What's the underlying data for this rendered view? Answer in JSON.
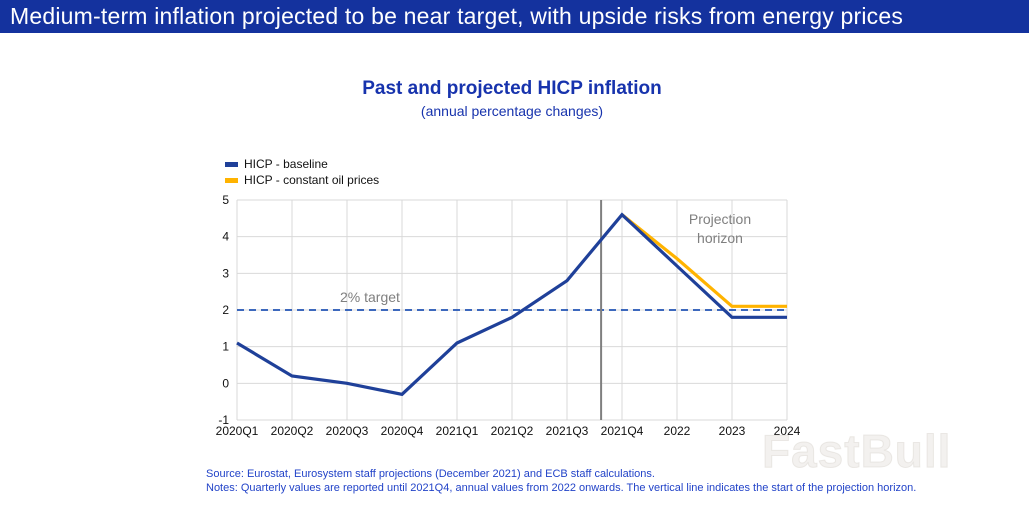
{
  "banner": {
    "title": "Medium-term inflation projected to be near target, with upside risks from energy prices",
    "bg_color": "#14329E",
    "text_color": "#FFFFFF"
  },
  "chart": {
    "title": "Past and projected HICP inflation",
    "subtitle": "(annual percentage changes)",
    "legend": [
      {
        "label": "HICP - baseline",
        "color": "#1F4099"
      },
      {
        "label": "HICP - constant oil prices",
        "color": "#FFB300"
      }
    ],
    "annotations": {
      "target_label": "2% target",
      "projection_line1": "Projection",
      "projection_line2": "horizon"
    }
  },
  "chart_data": {
    "type": "line",
    "title": "Past and projected HICP inflation",
    "subtitle": "(annual percentage changes)",
    "categories": [
      "2020Q1",
      "2020Q2",
      "2020Q3",
      "2020Q4",
      "2021Q1",
      "2021Q2",
      "2021Q3",
      "2021Q4",
      "2022",
      "2023",
      "2024"
    ],
    "series": [
      {
        "name": "HICP - baseline",
        "color": "#1F4099",
        "start_index": 0,
        "values": [
          1.1,
          0.2,
          0.0,
          -0.3,
          1.1,
          1.8,
          2.8,
          4.6,
          3.2,
          1.8,
          1.8
        ]
      },
      {
        "name": "HICP - constant oil prices",
        "color": "#FFB300",
        "start_index": 7,
        "values": [
          4.6,
          3.4,
          2.1,
          2.1
        ]
      }
    ],
    "ylim": [
      -1,
      5
    ],
    "yticks": [
      5,
      4,
      3,
      2,
      1,
      0,
      -1
    ],
    "target_line_value": 2,
    "target_line_color": "#2053B4",
    "projection_vline_x": 6.62,
    "vline_color": "#7F7F7F",
    "grid": true,
    "grid_color": "#D9D9D9",
    "legend_position": "top-left"
  },
  "notes": {
    "source": "Source: Eurostat, Eurosystem staff projections (December 2021) and ECB staff calculations.",
    "notes": "Notes: Quarterly values are reported until 2021Q4, annual values from 2022 onwards. The vertical line indicates the start of the projection horizon."
  },
  "watermark": "FastBull"
}
